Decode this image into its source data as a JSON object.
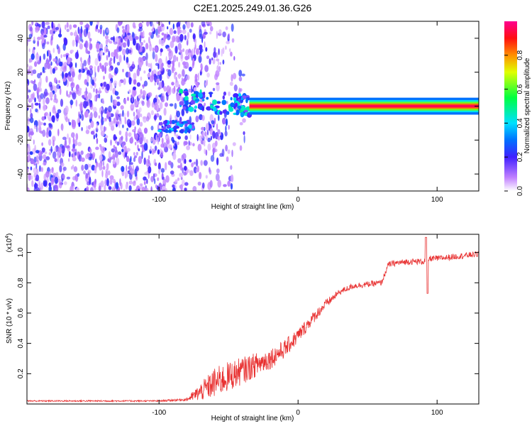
{
  "title": "C2E1.2025.249.01.36.G26",
  "chart_data": [
    {
      "type": "heatmap",
      "xlabel": "Height of straight line (km)",
      "ylabel": "Frequency (Hz)",
      "xlim": [
        -195,
        130
      ],
      "ylim": [
        -50,
        50
      ],
      "xticks": [
        -100,
        0,
        100
      ],
      "xtick_labels": [
        "-100",
        "0",
        "100"
      ],
      "yticks": [
        40,
        20,
        0,
        -20,
        -40
      ],
      "ytick_labels": [
        "40",
        "20",
        "0",
        "-20",
        "-40"
      ],
      "colorbar": {
        "label": "Normalized spectral amplitude",
        "range": [
          0,
          1
        ],
        "ticks": [
          0,
          0.2,
          0.4,
          0.6,
          0.8
        ],
        "tick_labels": [
          "0.0",
          "0.2",
          "0.4",
          "0.6",
          "0.8"
        ],
        "colors": [
          "#ffffff",
          "#a050ff",
          "#2020ff",
          "#00e0ff",
          "#00ff00",
          "#ffff00",
          "#ff8000",
          "#ff0000",
          "#ff0080"
        ]
      },
      "features": [
        {
          "name": "noise field",
          "x_range": [
            -195,
            -80
          ],
          "y_range": [
            -50,
            50
          ],
          "amplitude": 0.15
        },
        {
          "name": "signal band onset",
          "x_range": [
            -85,
            -35
          ],
          "center_freq": 2,
          "amplitude": 0.45
        },
        {
          "name": "negative branch",
          "x_range": [
            -100,
            -75
          ],
          "center_freq": -12,
          "amplitude": 0.4
        },
        {
          "name": "carrier line",
          "x_range": [
            -35,
            130
          ],
          "center_freq": 0,
          "amplitude": 0.95
        }
      ]
    },
    {
      "type": "line",
      "xlabel": "Height of straight line (km)",
      "ylabel": "SNR (10 * v/v)",
      "scale_label": "(x10",
      "scale_exponent": "4",
      "scale_close": ")",
      "xlim": [
        -195,
        130
      ],
      "ylim": [
        0,
        1.12
      ],
      "xticks": [
        -100,
        0,
        100
      ],
      "xtick_labels": [
        "-100",
        "0",
        "100"
      ],
      "yticks": [
        0.2,
        0.4,
        0.6,
        0.8,
        1.0
      ],
      "ytick_labels": [
        "0.2",
        "0.4",
        "0.6",
        "0.8",
        "1.0"
      ],
      "color": "#e83030",
      "series": [
        {
          "name": "SNR",
          "x": [
            -195,
            -150,
            -100,
            -80,
            -70,
            -60,
            -50,
            -40,
            -30,
            -20,
            -10,
            0,
            10,
            20,
            30,
            40,
            50,
            60,
            65,
            70,
            80,
            90,
            95,
            100,
            110,
            120,
            130
          ],
          "y": [
            0.02,
            0.02,
            0.02,
            0.03,
            0.08,
            0.14,
            0.18,
            0.22,
            0.26,
            0.3,
            0.36,
            0.45,
            0.56,
            0.66,
            0.74,
            0.78,
            0.79,
            0.8,
            0.92,
            0.93,
            0.94,
            0.94,
            0.96,
            0.96,
            0.97,
            0.98,
            0.99
          ],
          "noise": [
            0.005,
            0.005,
            0.005,
            0.01,
            0.06,
            0.1,
            0.1,
            0.09,
            0.08,
            0.07,
            0.06,
            0.05,
            0.04,
            0.03,
            0.02,
            0.02,
            0.02,
            0.02,
            0.02,
            0.02,
            0.02,
            0.02,
            0.02,
            0.02,
            0.02,
            0.02,
            0.02
          ],
          "spike": {
            "x": 92,
            "peak": 1.1,
            "dip": 0.73
          }
        }
      ]
    }
  ]
}
